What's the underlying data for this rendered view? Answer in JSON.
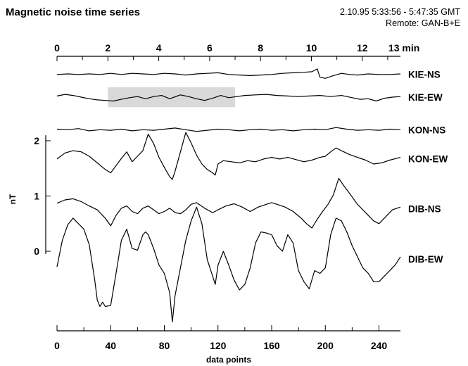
{
  "header": {
    "title": "Magnetic noise time series",
    "date_range": "2.10.95  5:33:56 - 5:47:35 GMT",
    "remote": "Remote: GAN-B+E"
  },
  "chart_data": {
    "type": "line",
    "title": "Magnetic noise time series",
    "xlabel": "data points",
    "ylabel": "nT",
    "xlim": [
      0,
      256
    ],
    "ylim": [
      -1.3,
      2.1
    ],
    "x_ticks": [
      0,
      40,
      80,
      120,
      160,
      200,
      240
    ],
    "x_tick_labels": [
      "0",
      "40",
      "80",
      "120",
      "160",
      "200",
      "240"
    ],
    "top_axis": {
      "unit": "min",
      "xlim": [
        0,
        13.5
      ],
      "ticks": [
        0,
        2,
        4,
        6,
        8,
        10,
        12,
        13
      ],
      "tick_labels": [
        "0",
        "2",
        "4",
        "6",
        "8",
        "10",
        "12",
        "13 min"
      ]
    },
    "y_ticks": [
      0,
      1,
      2
    ],
    "y_tick_labels": [
      "0",
      "1",
      "2"
    ],
    "highlight": {
      "x_min": 2,
      "x_max": 7,
      "x_unit": "min",
      "series": "KIE-EW",
      "color": "#d9d9d9"
    },
    "grid": false,
    "legend": "none",
    "series": [
      {
        "name": "KIE-NS",
        "points": [
          [
            0,
            3.2
          ],
          [
            8,
            3.21
          ],
          [
            16,
            3.2
          ],
          [
            24,
            3.21
          ],
          [
            32,
            3.2
          ],
          [
            40,
            3.22
          ],
          [
            48,
            3.2
          ],
          [
            56,
            3.22
          ],
          [
            64,
            3.21
          ],
          [
            72,
            3.2
          ],
          [
            80,
            3.22
          ],
          [
            88,
            3.21
          ],
          [
            96,
            3.19
          ],
          [
            104,
            3.21
          ],
          [
            112,
            3.22
          ],
          [
            120,
            3.23
          ],
          [
            128,
            3.2
          ],
          [
            136,
            3.19
          ],
          [
            144,
            3.18
          ],
          [
            152,
            3.19
          ],
          [
            160,
            3.2
          ],
          [
            168,
            3.22
          ],
          [
            176,
            3.23
          ],
          [
            184,
            3.24
          ],
          [
            190,
            3.25
          ],
          [
            194,
            3.3
          ],
          [
            196,
            3.15
          ],
          [
            200,
            3.13
          ],
          [
            206,
            3.18
          ],
          [
            212,
            3.22
          ],
          [
            218,
            3.2
          ],
          [
            224,
            3.19
          ],
          [
            232,
            3.21
          ],
          [
            240,
            3.2
          ],
          [
            248,
            3.2
          ],
          [
            256,
            3.21
          ]
        ]
      },
      {
        "name": "KIE-EW",
        "points": [
          [
            0,
            2.81
          ],
          [
            6,
            2.84
          ],
          [
            12,
            2.82
          ],
          [
            18,
            2.79
          ],
          [
            24,
            2.76
          ],
          [
            30,
            2.74
          ],
          [
            36,
            2.73
          ],
          [
            42,
            2.72
          ],
          [
            48,
            2.75
          ],
          [
            54,
            2.78
          ],
          [
            60,
            2.8
          ],
          [
            66,
            2.76
          ],
          [
            72,
            2.8
          ],
          [
            78,
            2.82
          ],
          [
            84,
            2.76
          ],
          [
            92,
            2.83
          ],
          [
            98,
            2.8
          ],
          [
            104,
            2.76
          ],
          [
            110,
            2.73
          ],
          [
            116,
            2.77
          ],
          [
            122,
            2.82
          ],
          [
            128,
            2.78
          ],
          [
            134,
            2.8
          ],
          [
            140,
            2.82
          ],
          [
            148,
            2.83
          ],
          [
            156,
            2.84
          ],
          [
            164,
            2.82
          ],
          [
            172,
            2.81
          ],
          [
            180,
            2.8
          ],
          [
            188,
            2.81
          ],
          [
            196,
            2.82
          ],
          [
            204,
            2.8
          ],
          [
            212,
            2.82
          ],
          [
            220,
            2.78
          ],
          [
            226,
            2.75
          ],
          [
            232,
            2.76
          ],
          [
            238,
            2.72
          ],
          [
            244,
            2.77
          ],
          [
            250,
            2.79
          ],
          [
            256,
            2.8
          ]
        ]
      },
      {
        "name": "KON-NS",
        "points": [
          [
            0,
            2.21
          ],
          [
            8,
            2.2
          ],
          [
            16,
            2.22
          ],
          [
            24,
            2.18
          ],
          [
            32,
            2.2
          ],
          [
            40,
            2.19
          ],
          [
            48,
            2.21
          ],
          [
            56,
            2.18
          ],
          [
            64,
            2.2
          ],
          [
            72,
            2.19
          ],
          [
            80,
            2.21
          ],
          [
            88,
            2.23
          ],
          [
            96,
            2.2
          ],
          [
            104,
            2.17
          ],
          [
            112,
            2.19
          ],
          [
            120,
            2.21
          ],
          [
            128,
            2.2
          ],
          [
            136,
            2.18
          ],
          [
            144,
            2.2
          ],
          [
            152,
            2.21
          ],
          [
            160,
            2.19
          ],
          [
            168,
            2.2
          ],
          [
            176,
            2.18
          ],
          [
            184,
            2.2
          ],
          [
            192,
            2.21
          ],
          [
            200,
            2.2
          ],
          [
            208,
            2.24
          ],
          [
            216,
            2.21
          ],
          [
            224,
            2.19
          ],
          [
            232,
            2.2
          ],
          [
            240,
            2.19
          ],
          [
            248,
            2.21
          ],
          [
            256,
            2.2
          ]
        ]
      },
      {
        "name": "KON-EW",
        "points": [
          [
            0,
            1.67
          ],
          [
            6,
            1.78
          ],
          [
            12,
            1.82
          ],
          [
            18,
            1.8
          ],
          [
            24,
            1.72
          ],
          [
            30,
            1.6
          ],
          [
            36,
            1.48
          ],
          [
            40,
            1.42
          ],
          [
            44,
            1.55
          ],
          [
            48,
            1.68
          ],
          [
            52,
            1.8
          ],
          [
            56,
            1.62
          ],
          [
            60,
            1.72
          ],
          [
            64,
            1.82
          ],
          [
            68,
            2.12
          ],
          [
            72,
            1.95
          ],
          [
            76,
            1.7
          ],
          [
            80,
            1.52
          ],
          [
            84,
            1.35
          ],
          [
            86,
            1.3
          ],
          [
            88,
            1.45
          ],
          [
            92,
            1.8
          ],
          [
            96,
            2.15
          ],
          [
            100,
            1.96
          ],
          [
            104,
            1.74
          ],
          [
            108,
            1.58
          ],
          [
            112,
            1.48
          ],
          [
            116,
            1.42
          ],
          [
            118,
            1.38
          ],
          [
            120,
            1.58
          ],
          [
            124,
            1.64
          ],
          [
            130,
            1.62
          ],
          [
            136,
            1.6
          ],
          [
            142,
            1.64
          ],
          [
            148,
            1.62
          ],
          [
            154,
            1.67
          ],
          [
            160,
            1.7
          ],
          [
            166,
            1.67
          ],
          [
            172,
            1.7
          ],
          [
            178,
            1.66
          ],
          [
            184,
            1.62
          ],
          [
            190,
            1.65
          ],
          [
            196,
            1.7
          ],
          [
            200,
            1.72
          ],
          [
            204,
            1.8
          ],
          [
            208,
            1.87
          ],
          [
            212,
            1.82
          ],
          [
            218,
            1.75
          ],
          [
            224,
            1.7
          ],
          [
            230,
            1.65
          ],
          [
            236,
            1.58
          ],
          [
            242,
            1.6
          ],
          [
            248,
            1.65
          ],
          [
            256,
            1.7
          ]
        ]
      },
      {
        "name": "DIB-NS",
        "points": [
          [
            0,
            0.87
          ],
          [
            6,
            0.93
          ],
          [
            12,
            0.95
          ],
          [
            18,
            0.9
          ],
          [
            24,
            0.82
          ],
          [
            30,
            0.75
          ],
          [
            36,
            0.6
          ],
          [
            40,
            0.46
          ],
          [
            44,
            0.65
          ],
          [
            48,
            0.78
          ],
          [
            52,
            0.82
          ],
          [
            56,
            0.72
          ],
          [
            60,
            0.68
          ],
          [
            64,
            0.78
          ],
          [
            68,
            0.82
          ],
          [
            72,
            0.75
          ],
          [
            76,
            0.68
          ],
          [
            80,
            0.72
          ],
          [
            84,
            0.78
          ],
          [
            88,
            0.7
          ],
          [
            92,
            0.68
          ],
          [
            96,
            0.75
          ],
          [
            100,
            0.85
          ],
          [
            104,
            0.88
          ],
          [
            110,
            0.78
          ],
          [
            116,
            0.7
          ],
          [
            120,
            0.75
          ],
          [
            126,
            0.82
          ],
          [
            132,
            0.86
          ],
          [
            138,
            0.8
          ],
          [
            144,
            0.72
          ],
          [
            150,
            0.8
          ],
          [
            156,
            0.85
          ],
          [
            160,
            0.88
          ],
          [
            164,
            0.85
          ],
          [
            170,
            0.8
          ],
          [
            176,
            0.72
          ],
          [
            182,
            0.6
          ],
          [
            186,
            0.5
          ],
          [
            190,
            0.42
          ],
          [
            194,
            0.58
          ],
          [
            198,
            0.72
          ],
          [
            202,
            0.85
          ],
          [
            206,
            1.02
          ],
          [
            210,
            1.32
          ],
          [
            214,
            1.18
          ],
          [
            218,
            1.05
          ],
          [
            224,
            0.85
          ],
          [
            230,
            0.7
          ],
          [
            236,
            0.55
          ],
          [
            240,
            0.5
          ],
          [
            244,
            0.6
          ],
          [
            250,
            0.75
          ],
          [
            256,
            0.8
          ]
        ]
      },
      {
        "name": "DIB-EW",
        "points": [
          [
            0,
            -0.28
          ],
          [
            4,
            0.2
          ],
          [
            8,
            0.48
          ],
          [
            12,
            0.6
          ],
          [
            16,
            0.5
          ],
          [
            20,
            0.4
          ],
          [
            24,
            0.12
          ],
          [
            28,
            -0.5
          ],
          [
            30,
            -0.88
          ],
          [
            32,
            -1.0
          ],
          [
            34,
            -0.92
          ],
          [
            36,
            -1.0
          ],
          [
            40,
            -0.98
          ],
          [
            44,
            -0.4
          ],
          [
            48,
            0.2
          ],
          [
            52,
            0.4
          ],
          [
            56,
            0.05
          ],
          [
            60,
            0.02
          ],
          [
            64,
            0.3
          ],
          [
            66,
            0.35
          ],
          [
            68,
            0.3
          ],
          [
            72,
            0.05
          ],
          [
            76,
            -0.25
          ],
          [
            80,
            -0.4
          ],
          [
            84,
            -0.75
          ],
          [
            86,
            -1.28
          ],
          [
            88,
            -0.8
          ],
          [
            92,
            -0.3
          ],
          [
            96,
            0.2
          ],
          [
            100,
            0.55
          ],
          [
            104,
            0.8
          ],
          [
            108,
            0.5
          ],
          [
            112,
            -0.15
          ],
          [
            116,
            -0.45
          ],
          [
            118,
            -0.6
          ],
          [
            120,
            -0.25
          ],
          [
            124,
            0.0
          ],
          [
            128,
            -0.25
          ],
          [
            132,
            -0.52
          ],
          [
            136,
            -0.7
          ],
          [
            140,
            -0.6
          ],
          [
            144,
            -0.3
          ],
          [
            148,
            0.15
          ],
          [
            152,
            0.35
          ],
          [
            156,
            0.33
          ],
          [
            160,
            0.3
          ],
          [
            164,
            0.1
          ],
          [
            168,
            0.0
          ],
          [
            172,
            0.3
          ],
          [
            176,
            0.15
          ],
          [
            180,
            -0.35
          ],
          [
            184,
            -0.55
          ],
          [
            188,
            -0.68
          ],
          [
            192,
            -0.35
          ],
          [
            196,
            -0.4
          ],
          [
            200,
            -0.3
          ],
          [
            204,
            0.3
          ],
          [
            208,
            0.6
          ],
          [
            212,
            0.55
          ],
          [
            216,
            0.35
          ],
          [
            220,
            0.1
          ],
          [
            224,
            -0.1
          ],
          [
            228,
            -0.3
          ],
          [
            232,
            -0.4
          ],
          [
            236,
            -0.55
          ],
          [
            240,
            -0.55
          ],
          [
            244,
            -0.45
          ],
          [
            248,
            -0.35
          ],
          [
            252,
            -0.25
          ],
          [
            256,
            -0.1
          ]
        ]
      }
    ]
  }
}
